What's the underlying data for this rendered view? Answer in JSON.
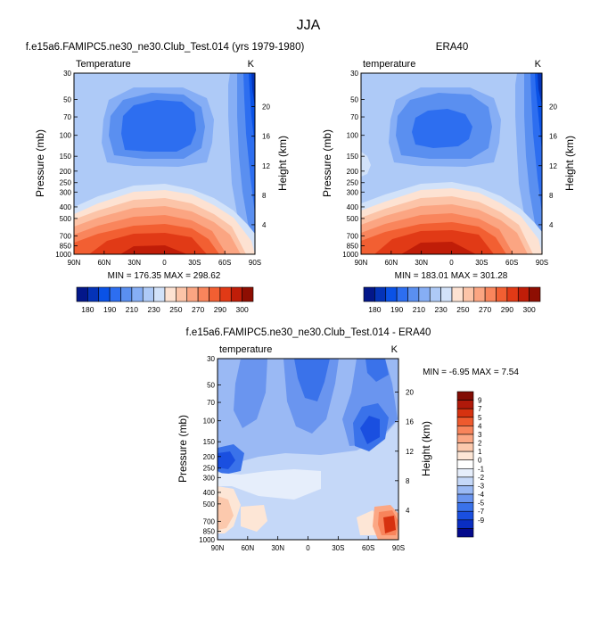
{
  "page_title": "JJA",
  "panels": [
    {
      "title": "f.e15a6.FAMIPC5.ne30_ne30.Club_Test.014 (yrs 1979-1980)",
      "left_label": "Temperature",
      "right_label": "K",
      "stats": "MIN = 176.35  MAX = 298.62"
    },
    {
      "title": "ERA40",
      "left_label": "temperature",
      "right_label": "K",
      "stats": "MIN = 183.01  MAX = 301.28"
    },
    {
      "title": "f.e15a6.FAMIPC5.ne30_ne30.Club_Test.014 - ERA40",
      "left_label": "temperature",
      "right_label": "K",
      "stats": "MIN =  -6.95  MAX =   7.54"
    }
  ],
  "axes": {
    "ylabel": "Pressure (mb)",
    "y2label": "Height (km)",
    "x_ticks": [
      "90N",
      "60N",
      "30N",
      "0",
      "30S",
      "60S",
      "90S"
    ],
    "p_ticks": [
      "30",
      "50",
      "70",
      "100",
      "150",
      "200",
      "250",
      "300",
      "400",
      "500",
      "700",
      "850",
      "1000"
    ],
    "h_ticks": [
      "20",
      "16",
      "12",
      "8",
      "4"
    ]
  },
  "colors": {
    "temp_palette": [
      "#03178a",
      "#0433b8",
      "#0a52e6",
      "#2d6ef0",
      "#5a8ff0",
      "#86aef5",
      "#aecaf7",
      "#d2e2f9",
      "#fde2d2",
      "#fcc4a8",
      "#fba582",
      "#f9855c",
      "#f25f32",
      "#e13a16",
      "#c01d08",
      "#8e0e02"
    ],
    "diff_palette": [
      "#040a8c",
      "#0a2ec2",
      "#1a4fe0",
      "#3a72ea",
      "#6a95ef",
      "#9ab9f4",
      "#c5d8f8",
      "#e6eefb",
      "#ffffff",
      "#fde6d6",
      "#fcc9ad",
      "#fba784",
      "#f8845b",
      "#ee5a2e",
      "#d63210",
      "#b0190a",
      "#820c04"
    ]
  },
  "chart_data": [
    {
      "type": "contour",
      "title": "f.e15a6.FAMIPC5.ne30_ne30.Club_Test.014 (yrs 1979-1980)",
      "variable": "Temperature",
      "units": "K",
      "x": [
        "90N",
        "60N",
        "30N",
        "0",
        "30S",
        "60S",
        "90S"
      ],
      "y_pressure_mb": [
        30,
        50,
        70,
        100,
        150,
        200,
        250,
        300,
        400,
        500,
        700,
        850,
        1000
      ],
      "min": 176.35,
      "max": 298.62,
      "colorbar_labels": [
        "180",
        "190",
        "210",
        "230",
        "250",
        "270",
        "290",
        "300"
      ],
      "levels": [
        175,
        180,
        185,
        190,
        200,
        210,
        220,
        230,
        240,
        250,
        260,
        270,
        280,
        290,
        295,
        300
      ]
    },
    {
      "type": "contour",
      "title": "ERA40",
      "variable": "temperature",
      "units": "K",
      "x": [
        "90N",
        "60N",
        "30N",
        "0",
        "30S",
        "60S",
        "90S"
      ],
      "y_pressure_mb": [
        30,
        50,
        70,
        100,
        150,
        200,
        250,
        300,
        400,
        500,
        700,
        850,
        1000
      ],
      "min": 183.01,
      "max": 301.28,
      "colorbar_labels": [
        "180",
        "190",
        "210",
        "230",
        "250",
        "270",
        "290",
        "300"
      ],
      "levels": [
        175,
        180,
        185,
        190,
        200,
        210,
        220,
        230,
        240,
        250,
        260,
        270,
        280,
        290,
        295,
        300
      ]
    },
    {
      "type": "contour",
      "title": "f.e15a6.FAMIPC5.ne30_ne30.Club_Test.014 - ERA40",
      "variable": "temperature",
      "units": "K",
      "x": [
        "90N",
        "60N",
        "30N",
        "0",
        "30S",
        "60S",
        "90S"
      ],
      "y_pressure_mb": [
        30,
        50,
        70,
        100,
        150,
        200,
        250,
        300,
        400,
        500,
        700,
        850,
        1000
      ],
      "min": -6.95,
      "max": 7.54,
      "colorbar_labels": [
        "9",
        "7",
        "5",
        "4",
        "3",
        "2",
        "1",
        "0",
        "-1",
        "-2",
        "-3",
        "-4",
        "-5",
        "-7",
        "-9"
      ],
      "levels": [
        -9,
        -7,
        -5,
        -4,
        -3,
        -2,
        -1,
        0,
        1,
        2,
        3,
        4,
        5,
        7,
        9
      ]
    }
  ]
}
